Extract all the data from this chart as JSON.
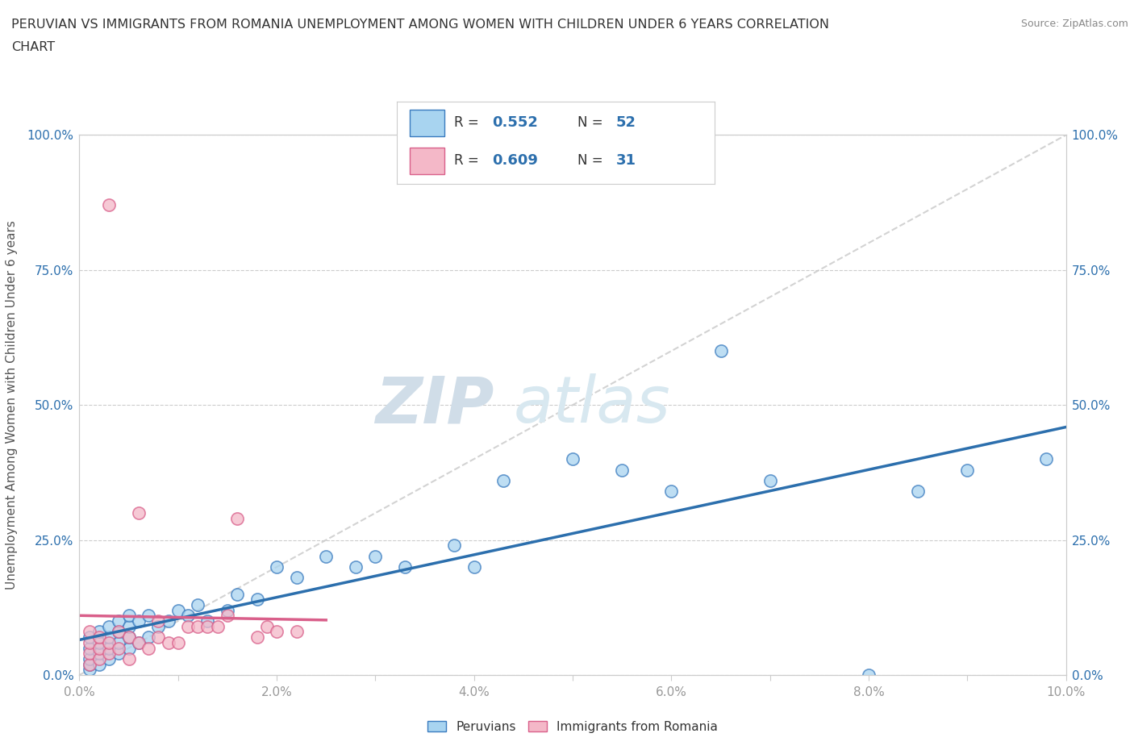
{
  "title_line1": "PERUVIAN VS IMMIGRANTS FROM ROMANIA UNEMPLOYMENT AMONG WOMEN WITH CHILDREN UNDER 6 YEARS CORRELATION",
  "title_line2": "CHART",
  "source": "Source: ZipAtlas.com",
  "ylabel": "Unemployment Among Women with Children Under 6 years",
  "xlim": [
    0.0,
    0.1
  ],
  "ylim": [
    0.0,
    1.0
  ],
  "xtick_labels": [
    "0.0%",
    "",
    "2.0%",
    "",
    "4.0%",
    "",
    "6.0%",
    "",
    "8.0%",
    "",
    "10.0%"
  ],
  "ytick_labels": [
    "0.0%",
    "25.0%",
    "50.0%",
    "75.0%",
    "100.0%"
  ],
  "xtick_vals": [
    0.0,
    0.01,
    0.02,
    0.03,
    0.04,
    0.05,
    0.06,
    0.07,
    0.08,
    0.09,
    0.1
  ],
  "ytick_vals": [
    0.0,
    0.25,
    0.5,
    0.75,
    1.0
  ],
  "r_blue": "0.552",
  "n_blue": "52",
  "r_pink": "0.609",
  "n_pink": "31",
  "blue_color": "#a8d4f0",
  "pink_color": "#f4b8c8",
  "blue_edge_color": "#3a7bbf",
  "pink_edge_color": "#d95f8a",
  "blue_line_color": "#2c6fad",
  "pink_line_color": "#d95f8a",
  "diagonal_color": "#c8c8c8",
  "watermark_zip": "ZIP",
  "watermark_atlas": "atlas",
  "background_color": "#ffffff",
  "tick_color": "#999999",
  "label_color": "#555555",
  "blue_scatter_x": [
    0.001,
    0.001,
    0.001,
    0.001,
    0.001,
    0.002,
    0.002,
    0.002,
    0.002,
    0.003,
    0.003,
    0.003,
    0.003,
    0.004,
    0.004,
    0.004,
    0.004,
    0.005,
    0.005,
    0.005,
    0.005,
    0.006,
    0.006,
    0.007,
    0.007,
    0.008,
    0.009,
    0.01,
    0.011,
    0.012,
    0.013,
    0.015,
    0.016,
    0.018,
    0.02,
    0.022,
    0.025,
    0.028,
    0.03,
    0.033,
    0.038,
    0.04,
    0.043,
    0.05,
    0.055,
    0.06,
    0.065,
    0.07,
    0.08,
    0.085,
    0.09,
    0.098
  ],
  "blue_scatter_y": [
    0.01,
    0.02,
    0.03,
    0.05,
    0.07,
    0.02,
    0.04,
    0.06,
    0.08,
    0.03,
    0.05,
    0.07,
    0.09,
    0.04,
    0.06,
    0.08,
    0.1,
    0.05,
    0.07,
    0.09,
    0.11,
    0.06,
    0.1,
    0.07,
    0.11,
    0.09,
    0.1,
    0.12,
    0.11,
    0.13,
    0.1,
    0.12,
    0.15,
    0.14,
    0.2,
    0.18,
    0.22,
    0.2,
    0.22,
    0.2,
    0.24,
    0.2,
    0.36,
    0.4,
    0.38,
    0.34,
    0.6,
    0.36,
    0.0,
    0.34,
    0.38,
    0.4
  ],
  "pink_scatter_x": [
    0.001,
    0.001,
    0.001,
    0.001,
    0.002,
    0.002,
    0.002,
    0.003,
    0.003,
    0.003,
    0.004,
    0.004,
    0.005,
    0.005,
    0.006,
    0.006,
    0.007,
    0.008,
    0.008,
    0.009,
    0.01,
    0.011,
    0.012,
    0.013,
    0.014,
    0.015,
    0.016,
    0.018,
    0.019,
    0.02,
    0.022
  ],
  "pink_scatter_y": [
    0.02,
    0.04,
    0.06,
    0.08,
    0.03,
    0.05,
    0.07,
    0.04,
    0.06,
    0.87,
    0.05,
    0.08,
    0.03,
    0.07,
    0.3,
    0.06,
    0.05,
    0.07,
    0.1,
    0.06,
    0.06,
    0.09,
    0.09,
    0.09,
    0.09,
    0.11,
    0.29,
    0.07,
    0.09,
    0.08,
    0.08
  ]
}
